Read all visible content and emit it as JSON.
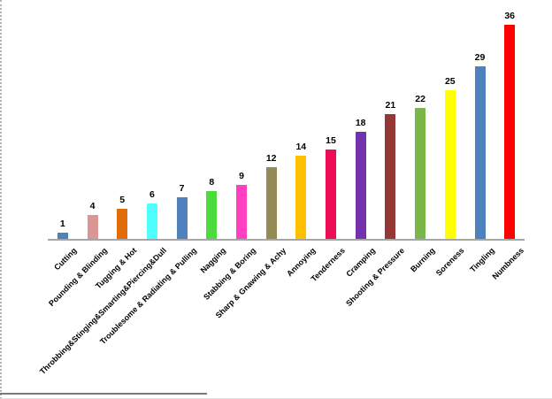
{
  "chart_data": {
    "type": "bar",
    "title": "",
    "xlabel": "",
    "ylabel": "",
    "categories": [
      "Cutting",
      "Pounding & Blinding",
      "Tugging & Hot",
      "Throbbing&Stinging&Smarting&Piercing&Dull",
      "Troublesome & Radiating & Pulling",
      "Nagging",
      "Stabbing & Boring",
      "Sharp & Gnawing & Achy",
      "Annoying",
      "Tenderness",
      "Cramping",
      "Shooting & Pressure",
      "Burning",
      "Soreness",
      "Tingling",
      "Numbness"
    ],
    "values": [
      1,
      4,
      5,
      6,
      7,
      8,
      9,
      12,
      14,
      15,
      18,
      21,
      22,
      25,
      29,
      36
    ],
    "bar_colors": [
      "#4F81BD",
      "#D99694",
      "#E36C0A",
      "#4DFFFF",
      "#4F81BD",
      "#4BDB3C",
      "#FF40C0",
      "#948A54",
      "#FFC000",
      "#EC0D55",
      "#7433AC",
      "#953735",
      "#7AB648",
      "#FFFF00",
      "#4F81BD",
      "#FF0000"
    ],
    "ylim": [
      0,
      36
    ],
    "grid": false,
    "legend": false,
    "data_labels": true,
    "category_label_rotation_deg": 45,
    "x_axis_line_color": "#A6A6A6",
    "value_label_color": "#000000"
  },
  "page": {
    "background": "#FFFFFF",
    "left_border_color": "#B3B3B3",
    "bottom_border_color": "#595959"
  }
}
